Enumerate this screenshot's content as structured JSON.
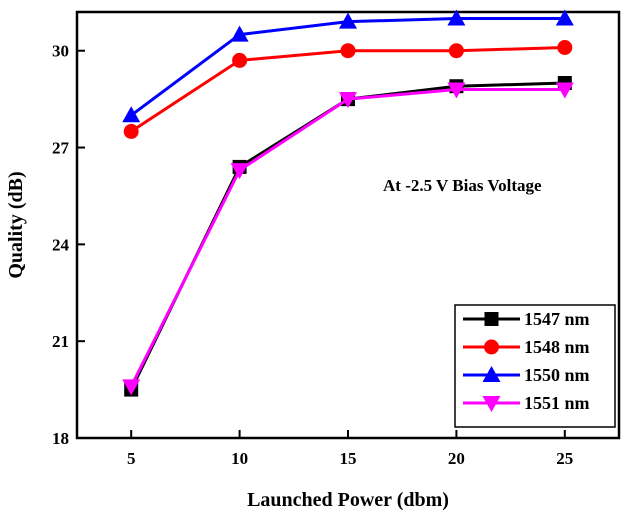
{
  "chart_data": {
    "type": "line",
    "title": "",
    "xlabel": "Launched Power (dbm)",
    "ylabel": "Quality (dB)",
    "x": [
      5,
      10,
      15,
      20,
      25
    ],
    "xticks": [
      "5",
      "10",
      "15",
      "20",
      "25"
    ],
    "yticks": [
      "18",
      "21",
      "24",
      "27",
      "30"
    ],
    "xlim": [
      2.5,
      27.5
    ],
    "ylim": [
      18,
      31.2
    ],
    "annotation": "At -2.5 V Bias Voltage",
    "legend_position": "bottom-right",
    "series": [
      {
        "name": "1547 nm",
        "color": "#000000",
        "marker": "square",
        "values": [
          19.5,
          26.4,
          28.5,
          28.9,
          29.0
        ]
      },
      {
        "name": "1548 nm",
        "color": "#ff0000",
        "marker": "circle",
        "values": [
          27.5,
          29.7,
          30.0,
          30.0,
          30.1
        ]
      },
      {
        "name": "1550 nm",
        "color": "#0000ff",
        "marker": "triangle-up",
        "values": [
          28.0,
          30.5,
          30.9,
          31.0,
          31.0
        ]
      },
      {
        "name": "1551 nm",
        "color": "#ff00ff",
        "marker": "triangle-down",
        "values": [
          19.6,
          26.3,
          28.5,
          28.8,
          28.8
        ]
      }
    ]
  }
}
